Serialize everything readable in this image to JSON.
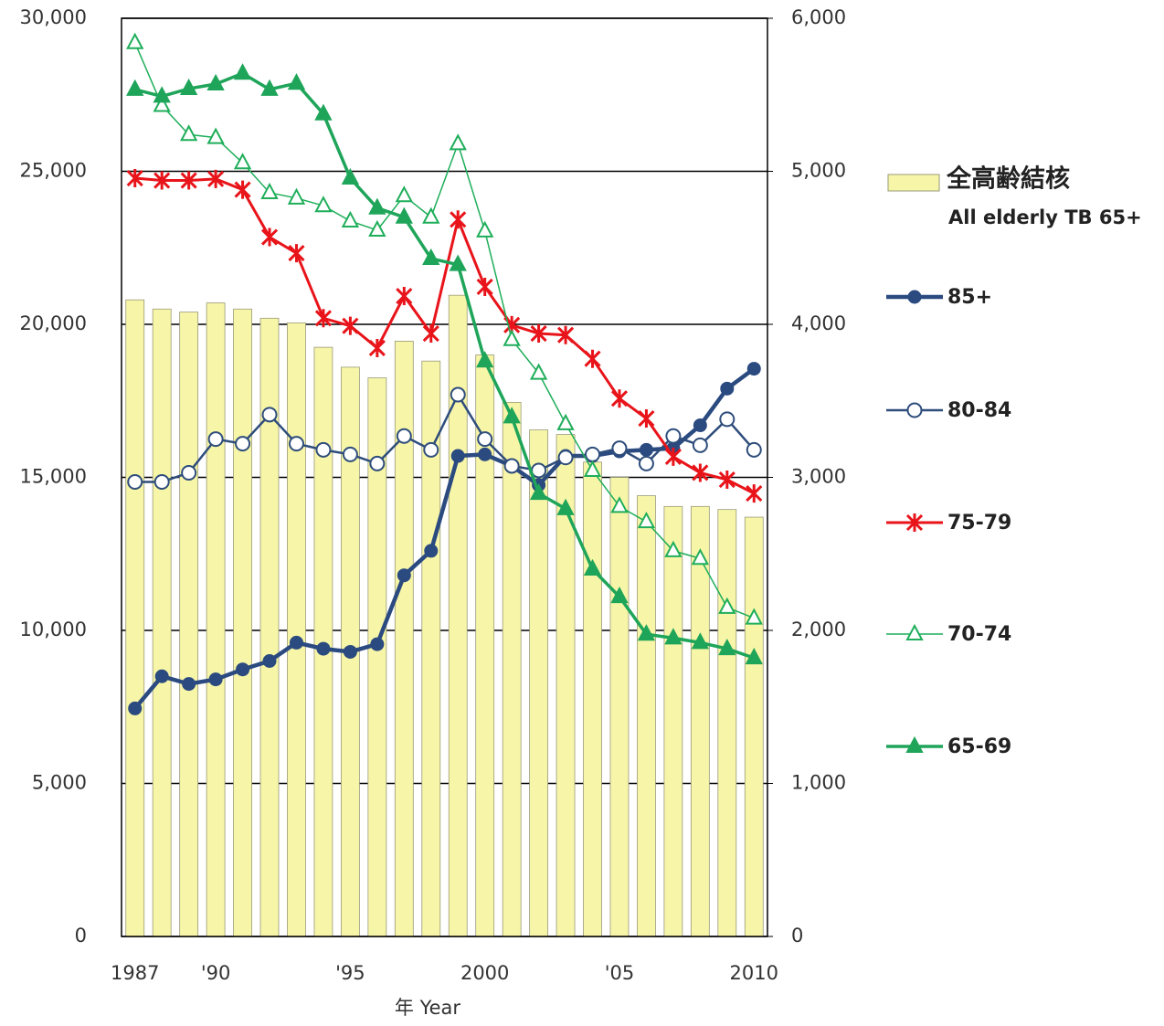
{
  "chart_data": {
    "type": "combo",
    "categories": [
      "1987",
      null,
      null,
      "'90",
      null,
      null,
      null,
      null,
      "'95",
      null,
      null,
      null,
      null,
      "2000",
      null,
      null,
      null,
      null,
      "'05",
      null,
      null,
      null,
      null,
      "2010"
    ],
    "x_label": "年 Year",
    "ylim": [
      0,
      30000
    ],
    "yticks": [
      0,
      {
        "value": 5000,
        "label": "5,000"
      },
      {
        "value": 10000,
        "label": "10,000"
      },
      {
        "value": 15000,
        "label": "15,000"
      },
      {
        "value": 20000,
        "label": "20,000"
      },
      {
        "value": 25000,
        "label": "25,000"
      },
      {
        "value": 30000,
        "label": "30,000"
      }
    ],
    "y2lim": [
      0,
      6000
    ],
    "y2ticks": [
      0,
      {
        "value": 1000,
        "label": "1,000"
      },
      {
        "value": 2000,
        "label": "2,000"
      },
      {
        "value": 3000,
        "label": "3,000"
      },
      {
        "value": 4000,
        "label": "4,000"
      },
      {
        "value": 5000,
        "label": "5,000"
      },
      {
        "value": 6000,
        "label": "6,000"
      }
    ],
    "grid": true,
    "legend": "right",
    "series": [
      {
        "name": "全高齢結核",
        "name_en": "All elderly TB 65+",
        "type": "bar",
        "color": "#f7f5a8",
        "values": [
          20800,
          20500,
          20400,
          20700,
          20500,
          20200,
          20050,
          19250,
          18600,
          18250,
          19450,
          18800,
          20950,
          19000,
          17450,
          16550,
          16400,
          15500,
          15000,
          14400,
          14050,
          14050,
          13950,
          13700
        ]
      },
      {
        "name": "85+",
        "type": "line",
        "axis": "y2",
        "marker": "circle-filled",
        "color": "#2a4a80",
        "values": [
          1490,
          1700,
          1650,
          1680,
          1745,
          1800,
          1920,
          1880,
          1860,
          1910,
          2360,
          2520,
          3140,
          3150,
          3075,
          2950,
          3140,
          3140,
          3170,
          3180,
          3190,
          3340,
          3580,
          3710
        ]
      },
      {
        "name": "80-84",
        "type": "line",
        "axis": "y2",
        "marker": "circle-open",
        "color": "#2e4d7b",
        "values": [
          2970,
          2970,
          3030,
          3250,
          3220,
          3410,
          3220,
          3180,
          3150,
          3090,
          3270,
          3180,
          3540,
          3250,
          3075,
          3045,
          3130,
          3150,
          3190,
          3090,
          3270,
          3210,
          3380,
          3180
        ]
      },
      {
        "name": "75-79",
        "type": "line",
        "axis": "y2",
        "marker": "asterisk",
        "color": "#e8141a",
        "values": [
          4955,
          4940,
          4940,
          4950,
          4880,
          4570,
          4465,
          4040,
          3990,
          3845,
          4185,
          3940,
          4685,
          4245,
          3995,
          3940,
          3930,
          3775,
          3515,
          3385,
          3135,
          3030,
          2985,
          2895
        ]
      },
      {
        "name": "70-74",
        "type": "line",
        "axis": "y2",
        "marker": "triangle-open",
        "color": "#1fae5a",
        "values": [
          5840,
          5430,
          5240,
          5220,
          5055,
          4860,
          4825,
          4775,
          4675,
          4615,
          4840,
          4700,
          5180,
          4610,
          3900,
          3680,
          3350,
          3045,
          2810,
          2710,
          2520,
          2470,
          2150,
          2080
        ]
      },
      {
        "name": "65-69",
        "type": "line",
        "axis": "y2",
        "marker": "triangle-filled",
        "color": "#1fa55a",
        "values": [
          5535,
          5490,
          5540,
          5570,
          5640,
          5535,
          5575,
          5375,
          4955,
          4760,
          4700,
          4430,
          4390,
          3760,
          3395,
          2895,
          2795,
          2400,
          2220,
          1975,
          1950,
          1920,
          1880,
          1820
        ]
      }
    ]
  }
}
